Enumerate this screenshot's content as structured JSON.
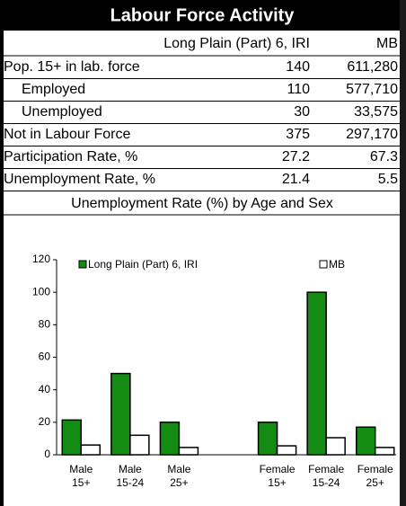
{
  "table": {
    "title": "Labour Force Activity",
    "columns": [
      "Long Plain (Part) 6, IRI",
      "MB"
    ],
    "rows": [
      [
        "Pop. 15+ in lab. force",
        "140",
        "611,280"
      ],
      [
        "Employed",
        "110",
        "577,710"
      ],
      [
        "Unemployed",
        "30",
        "33,575"
      ],
      [
        "Not in Labour Force",
        "375",
        "297,170"
      ],
      [
        "Participation Rate, %",
        "27.2",
        "67.3"
      ],
      [
        "Unemployment Rate, %",
        "21.4",
        "5.5"
      ]
    ]
  },
  "chart_data": {
    "type": "bar",
    "title": "Unemployment Rate (%) by Age and Sex",
    "categories": [
      [
        "Male",
        "15+"
      ],
      [
        "Male",
        "15-24"
      ],
      [
        "Male",
        "25+"
      ],
      null,
      [
        "Female",
        "15+"
      ],
      [
        "Female",
        "15-24"
      ],
      [
        "Female",
        "25+"
      ]
    ],
    "series": [
      {
        "name": "Long Plain (Part) 6, IRI",
        "color": "#148c14",
        "values": [
          21.4,
          50,
          20,
          null,
          20,
          100,
          17
        ]
      },
      {
        "name": "MB",
        "color": "#ffffff",
        "values": [
          6,
          12,
          4.5,
          null,
          5.5,
          10.5,
          4.5
        ]
      }
    ],
    "ylim": [
      0,
      120
    ],
    "yticks": [
      0,
      20,
      40,
      60,
      80,
      100,
      120
    ],
    "legend": "top"
  }
}
